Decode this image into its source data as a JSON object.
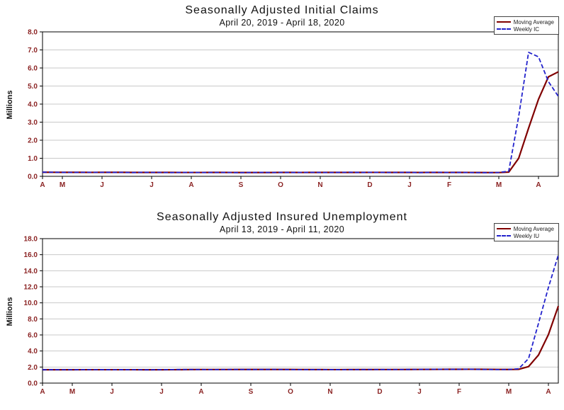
{
  "page": {
    "background": "#ffffff"
  },
  "chart_data": [
    {
      "type": "line",
      "title": "Seasonally Adjusted Initial Claims",
      "subtitle": "April 20, 2019 - April 18, 2020",
      "ylabel": "Millions",
      "ylim": [
        0,
        8
      ],
      "ytick_step": 1,
      "ytick_labels": [
        "0.0",
        "1.0",
        "2.0",
        "3.0",
        "4.0",
        "5.0",
        "6.0",
        "7.0",
        "8.0"
      ],
      "xtick_labels": [
        "A",
        "M",
        "J",
        "J",
        "A",
        "S",
        "O",
        "N",
        "D",
        "J",
        "F",
        "M",
        "A"
      ],
      "xtick_weeks": [
        0,
        2,
        6,
        11,
        15,
        20,
        24,
        28,
        33,
        37,
        41,
        46,
        50
      ],
      "grid": "horizontal",
      "legend_position": "top-right",
      "colors": {
        "grid": "#c9c9c9",
        "tick_labels": "#8b2323",
        "axis": "#000000"
      },
      "series": [
        {
          "name": "Moving Average",
          "color": "#800000",
          "dash": "solid",
          "width": 2.2,
          "values": [
            0.226,
            0.223,
            0.222,
            0.22,
            0.22,
            0.219,
            0.22,
            0.22,
            0.22,
            0.217,
            0.217,
            0.217,
            0.215,
            0.215,
            0.214,
            0.214,
            0.214,
            0.215,
            0.215,
            0.213,
            0.212,
            0.212,
            0.212,
            0.212,
            0.215,
            0.215,
            0.214,
            0.216,
            0.215,
            0.215,
            0.216,
            0.217,
            0.217,
            0.219,
            0.219,
            0.216,
            0.217,
            0.217,
            0.213,
            0.215,
            0.215,
            0.214,
            0.216,
            0.214,
            0.211,
            0.208,
            0.208,
            0.232,
            0.998,
            2.666,
            4.268,
            5.509,
            5.787
          ]
        },
        {
          "name": "Weekly IC",
          "color": "#2222cc",
          "dash": "dashed",
          "width": 1.8,
          "values": [
            0.23,
            0.226,
            0.218,
            0.216,
            0.221,
            0.219,
            0.222,
            0.217,
            0.221,
            0.208,
            0.221,
            0.217,
            0.213,
            0.209,
            0.216,
            0.219,
            0.211,
            0.214,
            0.217,
            0.21,
            0.206,
            0.213,
            0.219,
            0.211,
            0.218,
            0.212,
            0.215,
            0.22,
            0.213,
            0.211,
            0.218,
            0.224,
            0.213,
            0.222,
            0.218,
            0.211,
            0.216,
            0.222,
            0.203,
            0.219,
            0.22,
            0.212,
            0.214,
            0.211,
            0.205,
            0.202,
            0.215,
            0.282,
            3.307,
            6.867,
            6.615,
            5.245,
            4.427
          ]
        }
      ]
    },
    {
      "type": "line",
      "title": "Seasonally Adjusted Insured Unemployment",
      "subtitle": "April 13, 2019 - April 11, 2020",
      "ylabel": "Millions",
      "ylim": [
        0,
        18
      ],
      "ytick_step": 2,
      "ytick_labels": [
        "0.0",
        "2.0",
        "4.0",
        "6.0",
        "8.0",
        "10.0",
        "12.0",
        "14.0",
        "16.0",
        "18.0"
      ],
      "xtick_labels": [
        "A",
        "M",
        "J",
        "J",
        "A",
        "S",
        "O",
        "N",
        "D",
        "J",
        "F",
        "M",
        "A"
      ],
      "xtick_weeks": [
        0,
        3,
        7,
        12,
        16,
        21,
        25,
        29,
        34,
        38,
        42,
        47,
        51
      ],
      "grid": "horizontal",
      "legend_position": "top-right",
      "colors": {
        "grid": "#c9c9c9",
        "tick_labels": "#8b2323",
        "axis": "#000000"
      },
      "series": [
        {
          "name": "Moving Average",
          "color": "#800000",
          "dash": "solid",
          "width": 2.2,
          "values": [
            1.662,
            1.664,
            1.666,
            1.665,
            1.669,
            1.671,
            1.672,
            1.673,
            1.671,
            1.671,
            1.668,
            1.667,
            1.667,
            1.67,
            1.678,
            1.689,
            1.694,
            1.692,
            1.693,
            1.694,
            1.698,
            1.698,
            1.699,
            1.7,
            1.7,
            1.697,
            1.693,
            1.689,
            1.684,
            1.683,
            1.683,
            1.684,
            1.684,
            1.689,
            1.693,
            1.692,
            1.695,
            1.697,
            1.703,
            1.709,
            1.717,
            1.719,
            1.721,
            1.724,
            1.719,
            1.714,
            1.706,
            1.699,
            1.717,
            2.062,
            3.498,
            6.048,
            9.598
          ]
        },
        {
          "name": "Weekly IU",
          "color": "#2222cc",
          "dash": "dashed",
          "width": 1.8,
          "values": [
            1.658,
            1.671,
            1.668,
            1.662,
            1.675,
            1.68,
            1.672,
            1.665,
            1.67,
            1.676,
            1.662,
            1.658,
            1.672,
            1.688,
            1.694,
            1.7,
            1.692,
            1.685,
            1.695,
            1.705,
            1.698,
            1.692,
            1.701,
            1.71,
            1.698,
            1.687,
            1.676,
            1.682,
            1.69,
            1.684,
            1.678,
            1.685,
            1.692,
            1.7,
            1.694,
            1.69,
            1.698,
            1.706,
            1.712,
            1.72,
            1.728,
            1.715,
            1.722,
            1.73,
            1.71,
            1.698,
            1.684,
            1.702,
            1.784,
            3.059,
            7.446,
            11.912,
            15.976
          ]
        }
      ]
    }
  ]
}
